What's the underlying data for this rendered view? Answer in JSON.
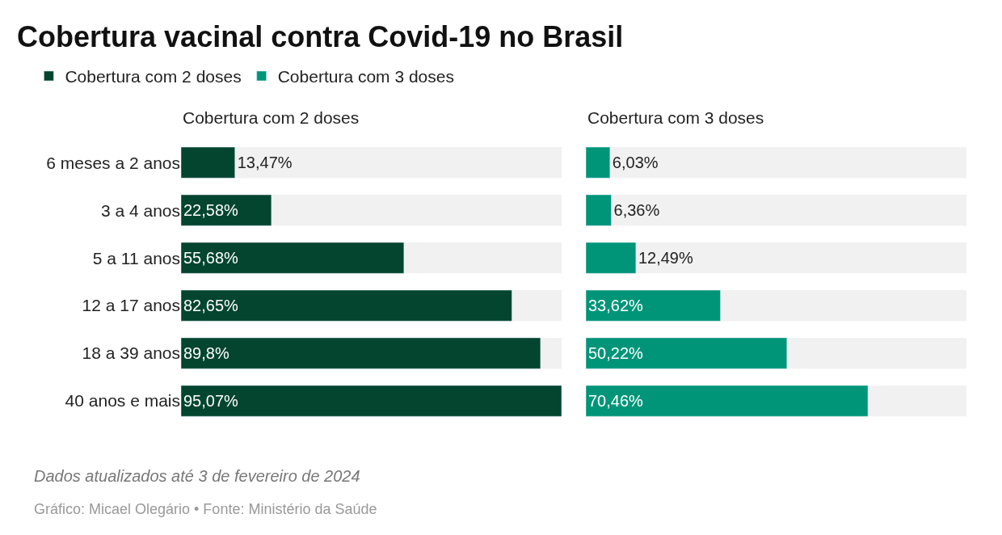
{
  "chart_data": [
    {
      "type": "bar",
      "orientation": "horizontal",
      "title": "Cobertura vacinal contra Covid-19 no Brasil",
      "subtitle": "Cobertura com 2 doses",
      "categories": [
        "6 meses a 2 anos",
        "3 a 4 anos",
        "5 a 11 anos",
        "12 a 17 anos",
        "18 a 39 anos",
        "40 anos e mais"
      ],
      "series": [
        {
          "name": "Cobertura com 2 doses",
          "color": "#03452f",
          "values": [
            13.47,
            22.58,
            55.68,
            82.65,
            89.8,
            95.07
          ],
          "value_labels": [
            "13,47%",
            "22,58%",
            "55,68%",
            "82,65%",
            "89,8%",
            "95,07%"
          ]
        }
      ],
      "xlim": [
        0,
        95.07
      ],
      "tick_labels": "y",
      "legend": "top left",
      "annotations": [
        "Dados atualizados até 3 de fevereiro de 2024",
        "Gráfico: Micael Olegário • Fonte: Ministério da Saúde"
      ]
    },
    {
      "type": "bar",
      "orientation": "horizontal",
      "subtitle": "Cobertura com 3 doses",
      "categories": [
        null,
        null,
        null,
        null,
        null,
        null
      ],
      "series": [
        {
          "name": "Cobertura com 3 doses",
          "color": "#009579",
          "values": [
            6.03,
            6.36,
            12.49,
            33.62,
            50.22,
            70.46
          ],
          "value_labels": [
            "6,03%",
            "6,36%",
            "12,49%",
            "33,62%",
            "50,22%",
            "70,46%"
          ]
        }
      ],
      "xlim": [
        0,
        95.07
      ],
      "tick_labels": false,
      "legend": "top left"
    }
  ]
}
